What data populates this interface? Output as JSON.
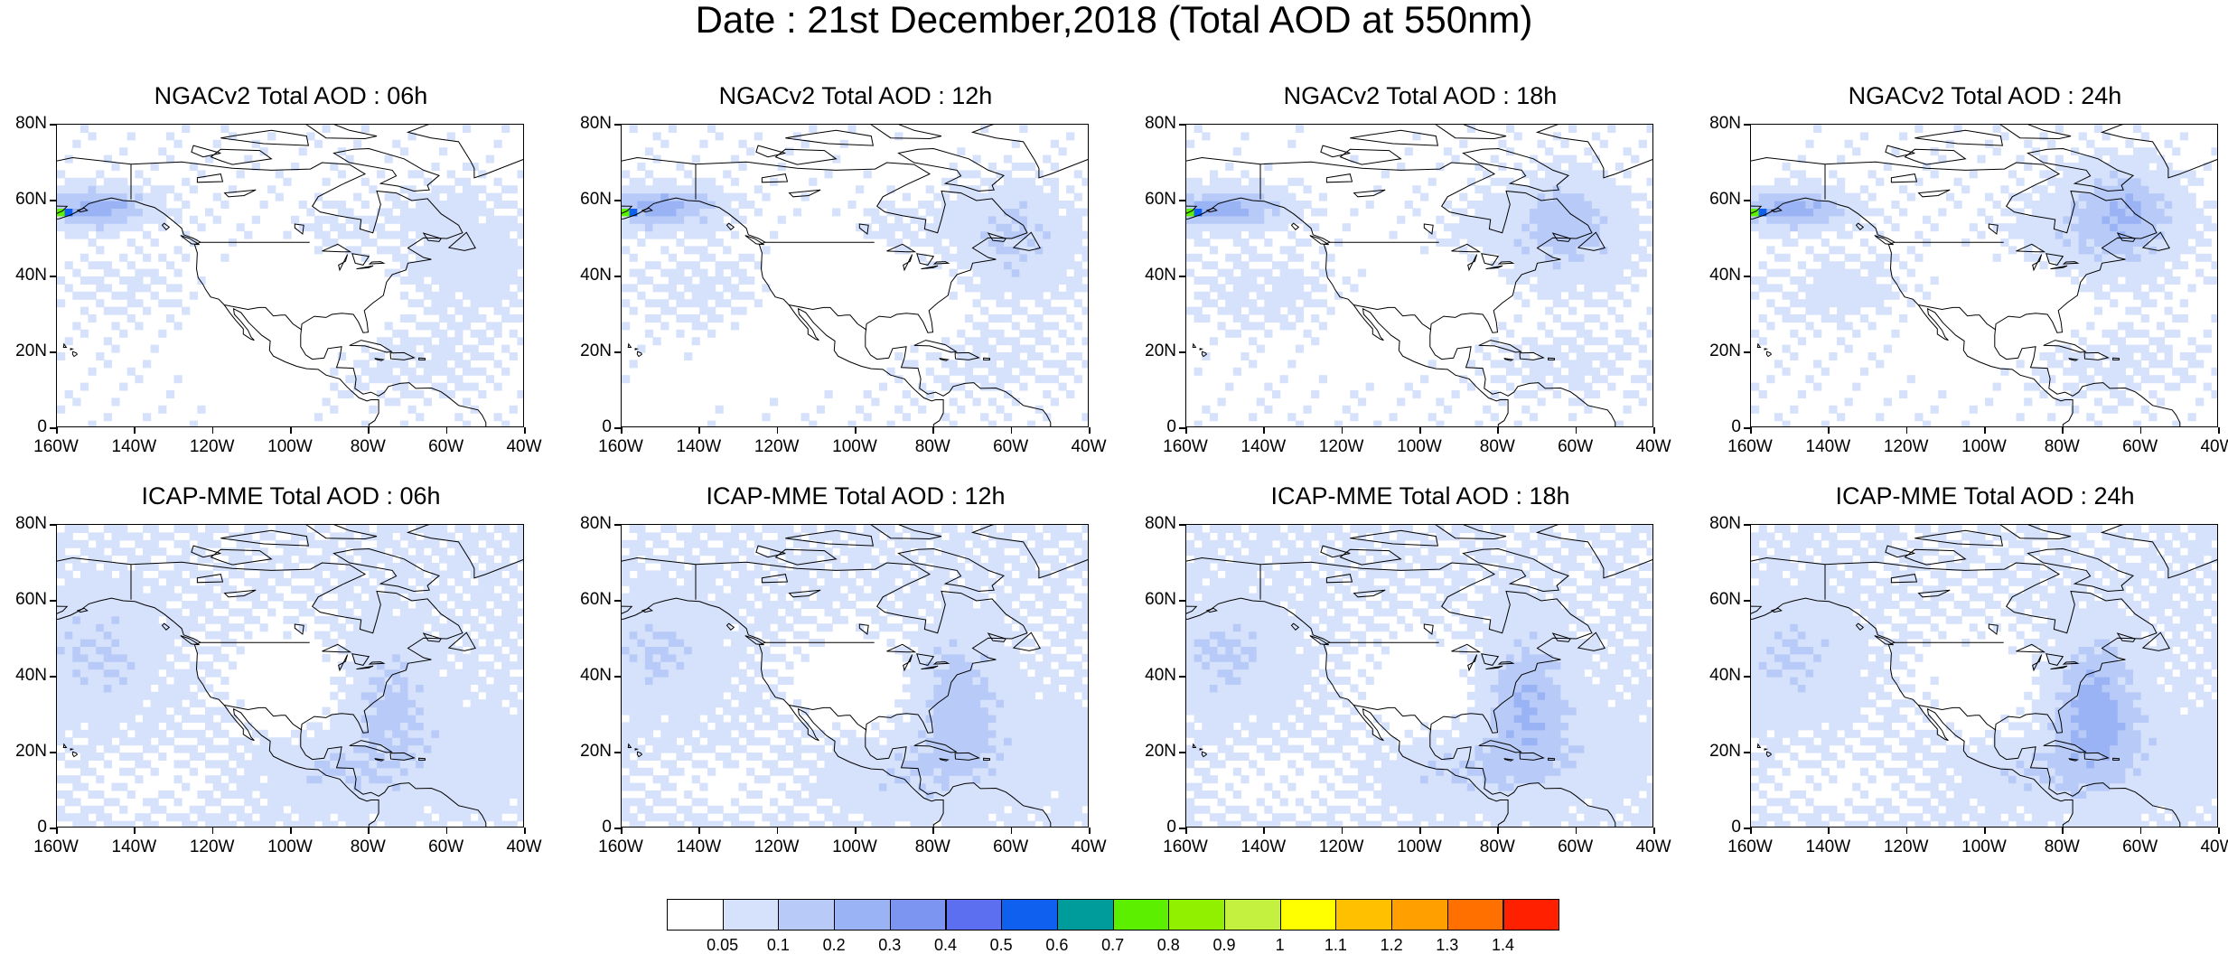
{
  "title": "Date : 21st December,2018 (Total AOD at 550nm)",
  "axes": {
    "x_tick_labels": [
      "160W",
      "140W",
      "120W",
      "100W",
      "80W",
      "60W",
      "40W"
    ],
    "y_tick_labels": [
      "0",
      "20N",
      "40N",
      "60N",
      "80N"
    ],
    "lon_range": [
      -160,
      -40
    ],
    "lat_range": [
      0,
      80
    ]
  },
  "panels": [
    {
      "title": "NGACv2 Total AOD : 06h",
      "model": "NGACv2",
      "hour": "06h"
    },
    {
      "title": "NGACv2 Total AOD : 12h",
      "model": "NGACv2",
      "hour": "12h"
    },
    {
      "title": "NGACv2 Total AOD : 18h",
      "model": "NGACv2",
      "hour": "18h"
    },
    {
      "title": "NGACv2 Total AOD : 24h",
      "model": "NGACv2",
      "hour": "24h"
    },
    {
      "title": "ICAP-MME Total AOD : 06h",
      "model": "ICAP-MME",
      "hour": "06h"
    },
    {
      "title": "ICAP-MME Total AOD : 12h",
      "model": "ICAP-MME",
      "hour": "12h"
    },
    {
      "title": "ICAP-MME Total AOD : 18h",
      "model": "ICAP-MME",
      "hour": "18h"
    },
    {
      "title": "ICAP-MME Total AOD : 24h",
      "model": "ICAP-MME",
      "hour": "24h"
    }
  ],
  "colorbar": {
    "labels": [
      "0.05",
      "0.1",
      "0.2",
      "0.3",
      "0.4",
      "0.5",
      "0.6",
      "0.7",
      "0.8",
      "0.9",
      "1",
      "1.1",
      "1.2",
      "1.3",
      "1.4"
    ],
    "colors": [
      "#ffffff",
      "#d6e2fb",
      "#b8cbf8",
      "#9ab3f5",
      "#7c95f0",
      "#5c6ff0",
      "#1060f0",
      "#009c9c",
      "#5cf000",
      "#90f000",
      "#c4f040",
      "#ffff00",
      "#ffc000",
      "#ffa000",
      "#ff7000",
      "#ff2000"
    ]
  }
}
